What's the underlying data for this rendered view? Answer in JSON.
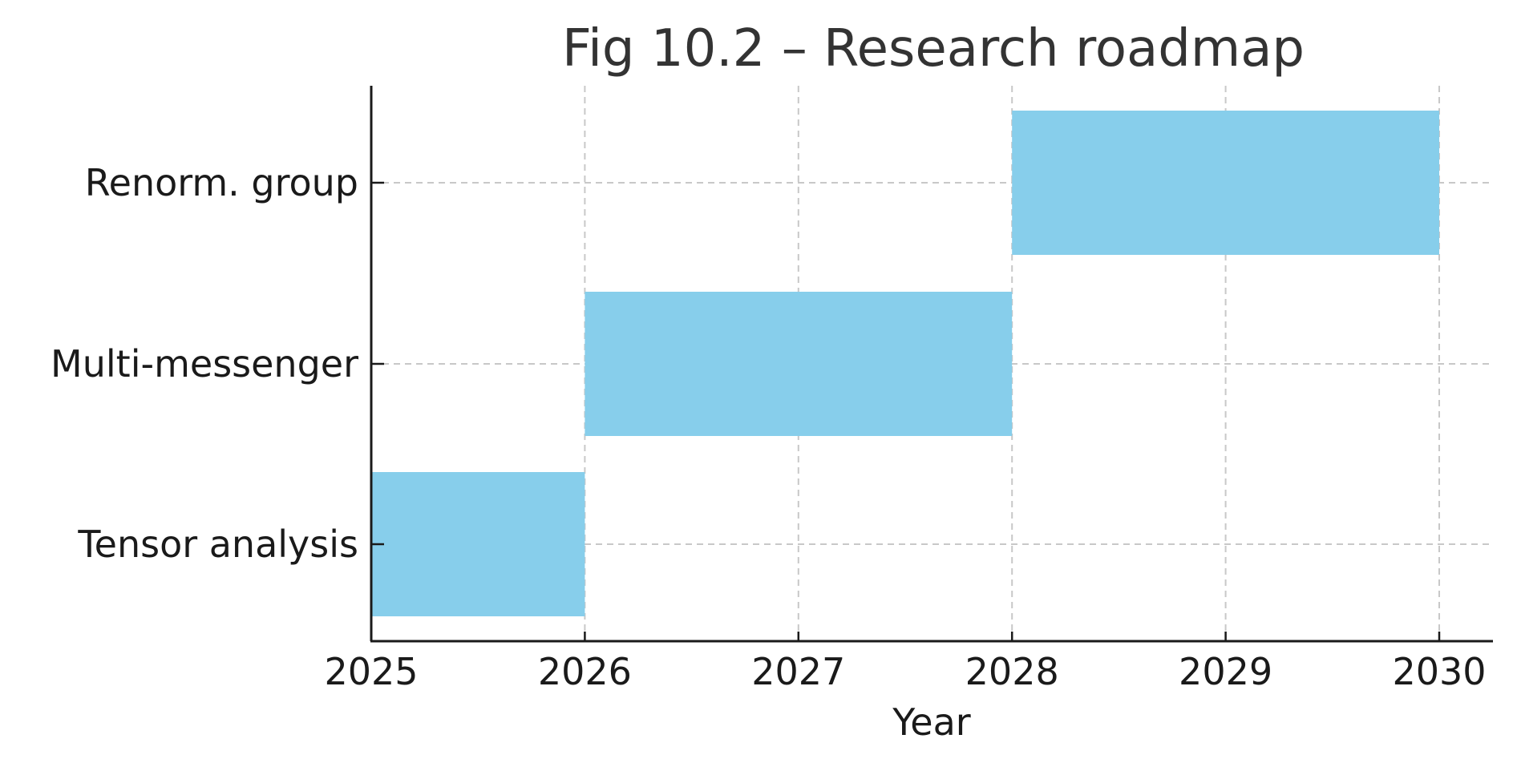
{
  "chart_data": {
    "type": "bar",
    "orientation": "horizontal",
    "title": "Fig 10.2 – Research roadmap",
    "xlabel": "Year",
    "ylabel": "",
    "xlim": [
      2025,
      2030.25
    ],
    "x_ticks": [
      2025,
      2026,
      2027,
      2028,
      2029,
      2030
    ],
    "categories": [
      "Tensor analysis",
      "Multi-messenger",
      "Renorm. group"
    ],
    "tasks": [
      {
        "name": "Tensor analysis",
        "start": 2025,
        "end": 2026
      },
      {
        "name": "Multi-messenger",
        "start": 2026,
        "end": 2028
      },
      {
        "name": "Renorm. group",
        "start": 2028,
        "end": 2030
      }
    ],
    "grid": true,
    "bar_color": "#87CEEB"
  }
}
